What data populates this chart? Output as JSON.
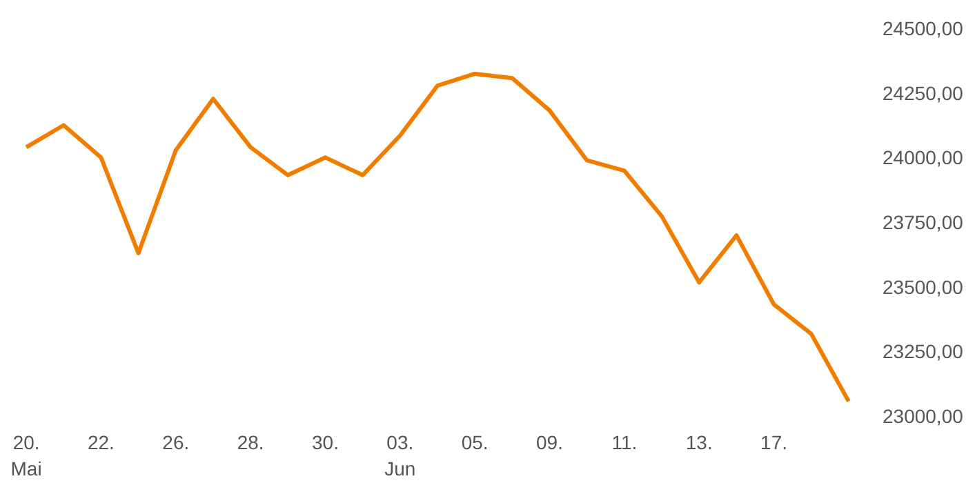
{
  "chart_data": {
    "type": "line",
    "categories": [
      "20.\nMai",
      null,
      "22.",
      null,
      "26.",
      null,
      "28.",
      null,
      "30.",
      null,
      "03.\nJun",
      null,
      "05.",
      null,
      "09.",
      null,
      "11.",
      null,
      "13.",
      null,
      "17.",
      null,
      null
    ],
    "series": [
      {
        "color": "#f07d00",
        "values": [
          24040,
          24125,
          24000,
          23630,
          24028,
          24227,
          24040,
          23932,
          24000,
          23932,
          24085,
          24278,
          24324,
          24307,
          24182,
          23989,
          23949,
          23773,
          23517,
          23699,
          23432,
          23318,
          23057
        ]
      }
    ],
    "ylim": [
      23000,
      24500
    ],
    "yticks": [
      {
        "value": 23000,
        "label": "23000,00"
      },
      {
        "value": 23250,
        "label": "23250,00"
      },
      {
        "value": 23500,
        "label": "23500,00"
      },
      {
        "value": 23750,
        "label": "23750,00"
      },
      {
        "value": 24000,
        "label": "24000,00"
      },
      {
        "value": 24250,
        "label": "24250,00"
      },
      {
        "value": 24500,
        "label": "24500,00"
      }
    ],
    "grid": false,
    "marker": "none",
    "line_style": "solid"
  }
}
